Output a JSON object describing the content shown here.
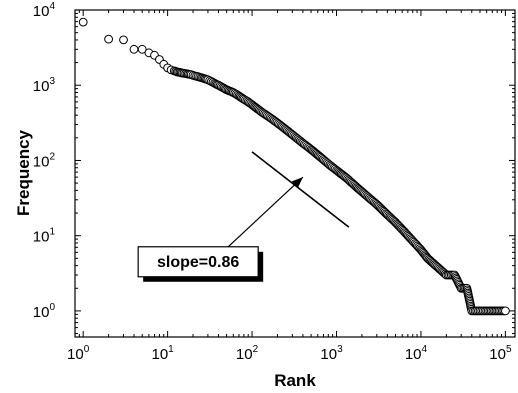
{
  "chart_data": {
    "type": "scatter",
    "title": "",
    "xlabel": "Rank",
    "ylabel": "Frequency",
    "xscale": "log",
    "yscale": "log",
    "xlim": [
      0.8,
      130000
    ],
    "ylim": [
      0.45,
      10000
    ],
    "x_ticks": [
      1,
      10,
      100,
      1000,
      10000,
      100000
    ],
    "y_ticks": [
      1,
      10,
      100,
      1000,
      10000
    ],
    "tick_labels": {
      "x": [
        {
          "base": "10",
          "exp": "0"
        },
        {
          "base": "10",
          "exp": "1"
        },
        {
          "base": "10",
          "exp": "2"
        },
        {
          "base": "10",
          "exp": "3"
        },
        {
          "base": "10",
          "exp": "4"
        },
        {
          "base": "10",
          "exp": "5"
        }
      ],
      "y": [
        {
          "base": "10",
          "exp": "0"
        },
        {
          "base": "10",
          "exp": "1"
        },
        {
          "base": "10",
          "exp": "2"
        },
        {
          "base": "10",
          "exp": "3"
        },
        {
          "base": "10",
          "exp": "4"
        }
      ]
    },
    "grid": false,
    "legend": "none",
    "marker": "open-circle",
    "series": [
      {
        "points": [
          [
            1,
            6900
          ],
          [
            2,
            4100
          ],
          [
            3,
            4000
          ],
          [
            4,
            3000
          ],
          [
            5,
            3000
          ],
          [
            6,
            2700
          ],
          [
            7,
            2500
          ],
          [
            8,
            2200
          ],
          [
            9,
            1900
          ],
          [
            10,
            1700
          ],
          [
            11,
            1600
          ],
          [
            12,
            1550
          ],
          [
            13,
            1500
          ],
          [
            14,
            1480
          ],
          [
            15,
            1450
          ],
          [
            17,
            1420
          ],
          [
            19,
            1380
          ],
          [
            21,
            1330
          ],
          [
            24,
            1280
          ],
          [
            27,
            1230
          ],
          [
            30,
            1180
          ],
          [
            33,
            1120
          ],
          [
            36,
            1060
          ],
          [
            40,
            1000
          ],
          [
            45,
            930
          ],
          [
            50,
            870
          ],
          [
            60,
            800
          ],
          [
            70,
            720
          ],
          [
            80,
            650
          ],
          [
            90,
            600
          ],
          [
            100,
            550
          ],
          [
            130,
            440
          ],
          [
            170,
            360
          ],
          [
            220,
            290
          ],
          [
            300,
            220
          ],
          [
            400,
            170
          ],
          [
            500,
            140
          ],
          [
            650,
            110
          ],
          [
            800,
            90
          ],
          [
            1000,
            74
          ],
          [
            1300,
            59
          ],
          [
            1700,
            45
          ],
          [
            2200,
            35
          ],
          [
            3000,
            26
          ],
          [
            4000,
            19
          ],
          [
            5000,
            15
          ],
          [
            6500,
            11
          ],
          [
            8000,
            8.5
          ],
          [
            10000,
            6.5
          ],
          [
            12000,
            5
          ],
          [
            15000,
            4
          ],
          [
            20000,
            3
          ],
          [
            25000,
            3
          ],
          [
            30000,
            2
          ],
          [
            35000,
            2
          ],
          [
            40000,
            1
          ],
          [
            60000,
            1
          ],
          [
            100000,
            1
          ]
        ]
      }
    ],
    "fit_line": {
      "x": [
        100,
        1400
      ],
      "y": [
        130,
        13
      ]
    },
    "annotation": {
      "text": "slope=0.86",
      "box_center": [
        23,
        4.5
      ],
      "arrow_to": [
        400,
        60
      ]
    }
  }
}
